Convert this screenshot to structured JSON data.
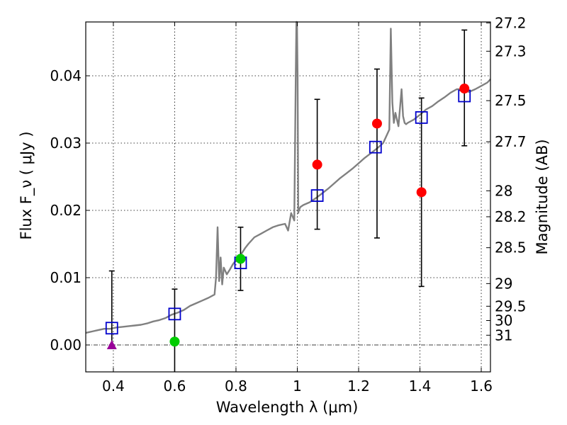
{
  "chart_data": {
    "type": "scatter",
    "xlabel": "Wavelength  λ (μm)",
    "ylabel": "Flux  F_ν  ( μJy )",
    "y2label": "Magnitude (AB)",
    "xlim": [
      0.31,
      1.63
    ],
    "ylim": [
      -0.004,
      0.048
    ],
    "x_ticks": [
      0.4,
      0.6,
      0.8,
      1.0,
      1.2,
      1.4,
      1.6
    ],
    "x_tick_labels": [
      "0.4",
      "0.6",
      "0.8",
      "1",
      "1.2",
      "1.4",
      "1.6"
    ],
    "y_ticks": [
      0.0,
      0.01,
      0.02,
      0.03,
      0.04
    ],
    "y_tick_labels": [
      "0.00",
      "0.01",
      "0.02",
      "0.03",
      "0.04"
    ],
    "mag_ticks": [
      "27.2",
      "27.3",
      "27.5",
      "27.7",
      "28",
      "28.2",
      "28.5",
      "29",
      "29.5",
      "30",
      "31"
    ],
    "grid": true,
    "series": [
      {
        "name": "model spectrum",
        "kind": "line",
        "color": "#808080",
        "x": [
          0.31,
          0.33,
          0.35,
          0.37,
          0.39,
          0.41,
          0.43,
          0.45,
          0.47,
          0.49,
          0.51,
          0.53,
          0.55,
          0.57,
          0.59,
          0.61,
          0.63,
          0.65,
          0.67,
          0.69,
          0.71,
          0.73,
          0.735,
          0.74,
          0.745,
          0.75,
          0.755,
          0.76,
          0.77,
          0.78,
          0.79,
          0.8,
          0.81,
          0.82,
          0.83,
          0.84,
          0.86,
          0.88,
          0.9,
          0.92,
          0.94,
          0.96,
          0.97,
          0.98,
          0.99,
          0.995,
          0.997,
          0.999,
          1.001,
          1.003,
          1.005,
          1.01,
          1.02,
          1.04,
          1.06,
          1.08,
          1.1,
          1.12,
          1.14,
          1.16,
          1.18,
          1.2,
          1.22,
          1.24,
          1.26,
          1.28,
          1.3,
          1.305,
          1.31,
          1.315,
          1.32,
          1.33,
          1.34,
          1.345,
          1.35,
          1.355,
          1.36,
          1.38,
          1.4,
          1.42,
          1.44,
          1.46,
          1.48,
          1.5,
          1.52,
          1.54,
          1.56,
          1.58,
          1.6,
          1.62,
          1.63
        ],
        "y": [
          0.0018,
          0.002,
          0.0022,
          0.0024,
          0.0024,
          0.0026,
          0.0027,
          0.0028,
          0.0029,
          0.003,
          0.0032,
          0.0035,
          0.0037,
          0.004,
          0.0045,
          0.0048,
          0.0052,
          0.0058,
          0.0062,
          0.0066,
          0.007,
          0.0075,
          0.01,
          0.0175,
          0.0095,
          0.013,
          0.009,
          0.0115,
          0.0105,
          0.0112,
          0.012,
          0.0126,
          0.0132,
          0.0137,
          0.0144,
          0.015,
          0.016,
          0.0165,
          0.017,
          0.0175,
          0.0178,
          0.018,
          0.017,
          0.0196,
          0.0185,
          0.04,
          0.052,
          0.052,
          0.04,
          0.0196,
          0.02,
          0.0205,
          0.0208,
          0.0212,
          0.0218,
          0.0225,
          0.0232,
          0.024,
          0.0248,
          0.0255,
          0.0262,
          0.027,
          0.0278,
          0.0285,
          0.0292,
          0.03,
          0.032,
          0.047,
          0.036,
          0.033,
          0.0345,
          0.0325,
          0.038,
          0.034,
          0.033,
          0.0328,
          0.033,
          0.0335,
          0.0342,
          0.035,
          0.0355,
          0.0362,
          0.0368,
          0.0375,
          0.038,
          0.038,
          0.0376,
          0.038,
          0.0385,
          0.039,
          0.0395
        ]
      },
      {
        "name": "model photometry",
        "kind": "open-square",
        "color": "#0000cc",
        "x": [
          0.395,
          0.6,
          0.815,
          1.065,
          1.255,
          1.405,
          1.545
        ],
        "y": [
          0.0025,
          0.0046,
          0.0122,
          0.0222,
          0.0294,
          0.0338,
          0.037
        ]
      },
      {
        "name": "HST red points",
        "kind": "filled-circle",
        "color": "#ff0000",
        "x": [
          1.065,
          1.26,
          1.405,
          1.545
        ],
        "y": [
          0.0268,
          0.0329,
          0.0227,
          0.0381
        ],
        "err_low": [
          0.0096,
          0.017,
          0.014,
          0.0085
        ],
        "err_high": [
          0.0097,
          0.0081,
          0.014,
          0.0087
        ]
      },
      {
        "name": "green points",
        "kind": "filled-circle",
        "color": "#00cc00",
        "x": [
          0.6,
          0.815
        ],
        "y": [
          0.0005,
          0.0128
        ],
        "err_low": [
          0.005,
          0.0047
        ],
        "err_high": [
          0.0078,
          0.0047
        ]
      },
      {
        "name": "purple point",
        "kind": "triangle",
        "color": "#990099",
        "x": [
          0.395
        ],
        "y": [
          0.0
        ],
        "err_low": [
          0.0
        ],
        "err_high": [
          0.011
        ]
      }
    ]
  }
}
